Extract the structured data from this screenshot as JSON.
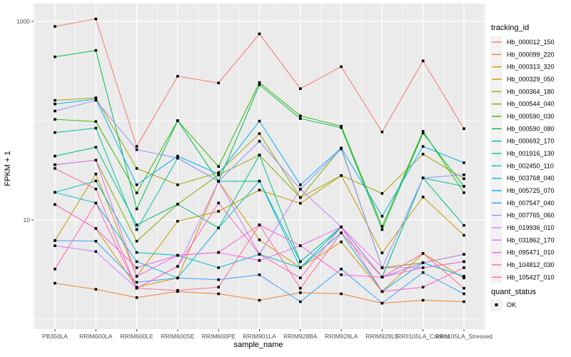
{
  "chart_data": {
    "type": "line",
    "title": "",
    "xlabel": "sample_name",
    "ylabel": "FPKM + 1",
    "y_scale": "log10",
    "y_ticks": [
      1000,
      10
    ],
    "y_tick_labels": [
      "1000",
      "10"
    ],
    "y_minor_ticks": [
      100,
      1
    ],
    "ylim": [
      0.8,
      1400
    ],
    "grid": "major+minor",
    "panel_bg": "#EBEBEB",
    "grid_color": "#FFFFFF",
    "point_color": "#000000",
    "legend_key_bg": "#F2F2F2",
    "legend_title": "tracking_id",
    "quant_legend": {
      "title": "quant_status",
      "items": [
        {
          "label": "OK"
        }
      ]
    },
    "categories": [
      "PB350LA",
      "RRIM600LA",
      "RRIM600LE",
      "RRIM600SE",
      "RRIM600PE",
      "RRIM901LA",
      "RRIM928BA",
      "RRIM928LA",
      "RRIM928LE",
      "RRII105LA_Control",
      "RRII105LA_Stressed"
    ],
    "series": [
      {
        "name": "Hb_000012_150",
        "color": "#F8766D",
        "values": [
          890,
          1060,
          55,
          280,
          240,
          750,
          210,
          350,
          77,
          400,
          83
        ]
      },
      {
        "name": "Hb_000099_220",
        "color": "#EA8331",
        "values": [
          2.3,
          2.0,
          1.65,
          1.9,
          1.8,
          1.55,
          1.85,
          1.8,
          1.45,
          1.55,
          1.5
        ]
      },
      {
        "name": "Hb_000313_320",
        "color": "#D89000",
        "values": [
          14.3,
          8.2,
          2.1,
          2.6,
          24.5,
          6.3,
          3.3,
          6.0,
          1.9,
          4.6,
          2.6
        ]
      },
      {
        "name": "Hb_000329_050",
        "color": "#C09B00",
        "values": [
          6.2,
          29,
          2.7,
          9.7,
          12.2,
          20,
          14.7,
          28,
          4.65,
          17,
          7.0
        ]
      },
      {
        "name": "Hb_000364_180",
        "color": "#A3A500",
        "values": [
          160,
          170,
          33,
          22.6,
          30,
          74,
          16.8,
          28,
          18.5,
          46,
          26
        ]
      },
      {
        "name": "Hb_000544_040",
        "color": "#7CAE00",
        "values": [
          36,
          40,
          6.1,
          14.4,
          28.4,
          45,
          16.8,
          53,
          3.3,
          3.7,
          4.5
        ]
      },
      {
        "name": "Hb_000590_030",
        "color": "#39B600",
        "values": [
          103,
          98,
          18.7,
          100,
          34.5,
          242,
          112,
          88,
          8.6,
          78,
          18.8
        ]
      },
      {
        "name": "Hb_000590_080",
        "color": "#00BB4E",
        "values": [
          440,
          510,
          12.9,
          100,
          24.5,
          230,
          105,
          85,
          8.0,
          75,
          21.8
        ]
      },
      {
        "name": "Hb_000692_170",
        "color": "#00BF7D",
        "values": [
          44,
          54,
          8.9,
          14.4,
          8.3,
          45,
          3.8,
          8.5,
          2.65,
          26.5,
          8.8
        ]
      },
      {
        "name": "Hb_001916_130",
        "color": "#00C1A3",
        "values": [
          76,
          84,
          8.0,
          42,
          24.5,
          24.6,
          3.8,
          8.5,
          2.65,
          26.5,
          21.8
        ]
      },
      {
        "name": "Hb_002450_110",
        "color": "#00BFC4",
        "values": [
          19,
          24.7,
          4.7,
          4.4,
          3.3,
          4.5,
          3.3,
          8.5,
          2.65,
          3.7,
          2.7
        ]
      },
      {
        "name": "Hb_003768_040",
        "color": "#00BAE0",
        "values": [
          19,
          14.8,
          3.8,
          2.6,
          8.3,
          24.6,
          3.3,
          7.4,
          1.9,
          3.7,
          2.7
        ]
      },
      {
        "name": "Hb_005725_070",
        "color": "#00B0F6",
        "values": [
          147,
          165,
          22.6,
          44,
          29,
          99,
          22.6,
          53,
          10.9,
          55,
          37.7
        ]
      },
      {
        "name": "Hb_007547_040",
        "color": "#35A2FF",
        "values": [
          6.2,
          6.1,
          2.35,
          2.6,
          2.5,
          2.8,
          1.5,
          3.2,
          1.45,
          2.95,
          1.8
        ]
      },
      {
        "name": "Hb_007765_060",
        "color": "#9590FF",
        "values": [
          125,
          160,
          51,
          42,
          24.5,
          62,
          20.4,
          52,
          3.3,
          26.5,
          28.5
        ]
      },
      {
        "name": "Hb_019936_010",
        "color": "#C77CFF",
        "values": [
          5.5,
          4.8,
          2.05,
          3.4,
          24.5,
          4.5,
          20.4,
          8.5,
          2.65,
          3.7,
          4.5
        ]
      },
      {
        "name": "Hb_031862_170",
        "color": "#E76BF3",
        "values": [
          36,
          40,
          2.7,
          4.4,
          4.7,
          3.9,
          5.5,
          8.5,
          3.3,
          3.3,
          3.8
        ]
      },
      {
        "name": "Hb_095471_010",
        "color": "#FA62DB",
        "values": [
          14.3,
          8.2,
          3.3,
          4.4,
          4.7,
          8.9,
          5.5,
          2.8,
          2.65,
          3.3,
          3.8
        ]
      },
      {
        "name": "Hb_104812_030",
        "color": "#FF62BC",
        "values": [
          3.2,
          14.8,
          2.05,
          3.4,
          14.8,
          4.5,
          2.6,
          8.5,
          1.9,
          2.1,
          3.3
        ]
      },
      {
        "name": "Hb_105427_010",
        "color": "#FF6A98",
        "values": [
          33,
          20.5,
          2.05,
          1.95,
          2.1,
          8.9,
          2.05,
          7.4,
          2.65,
          4.6,
          2.05
        ]
      }
    ]
  }
}
